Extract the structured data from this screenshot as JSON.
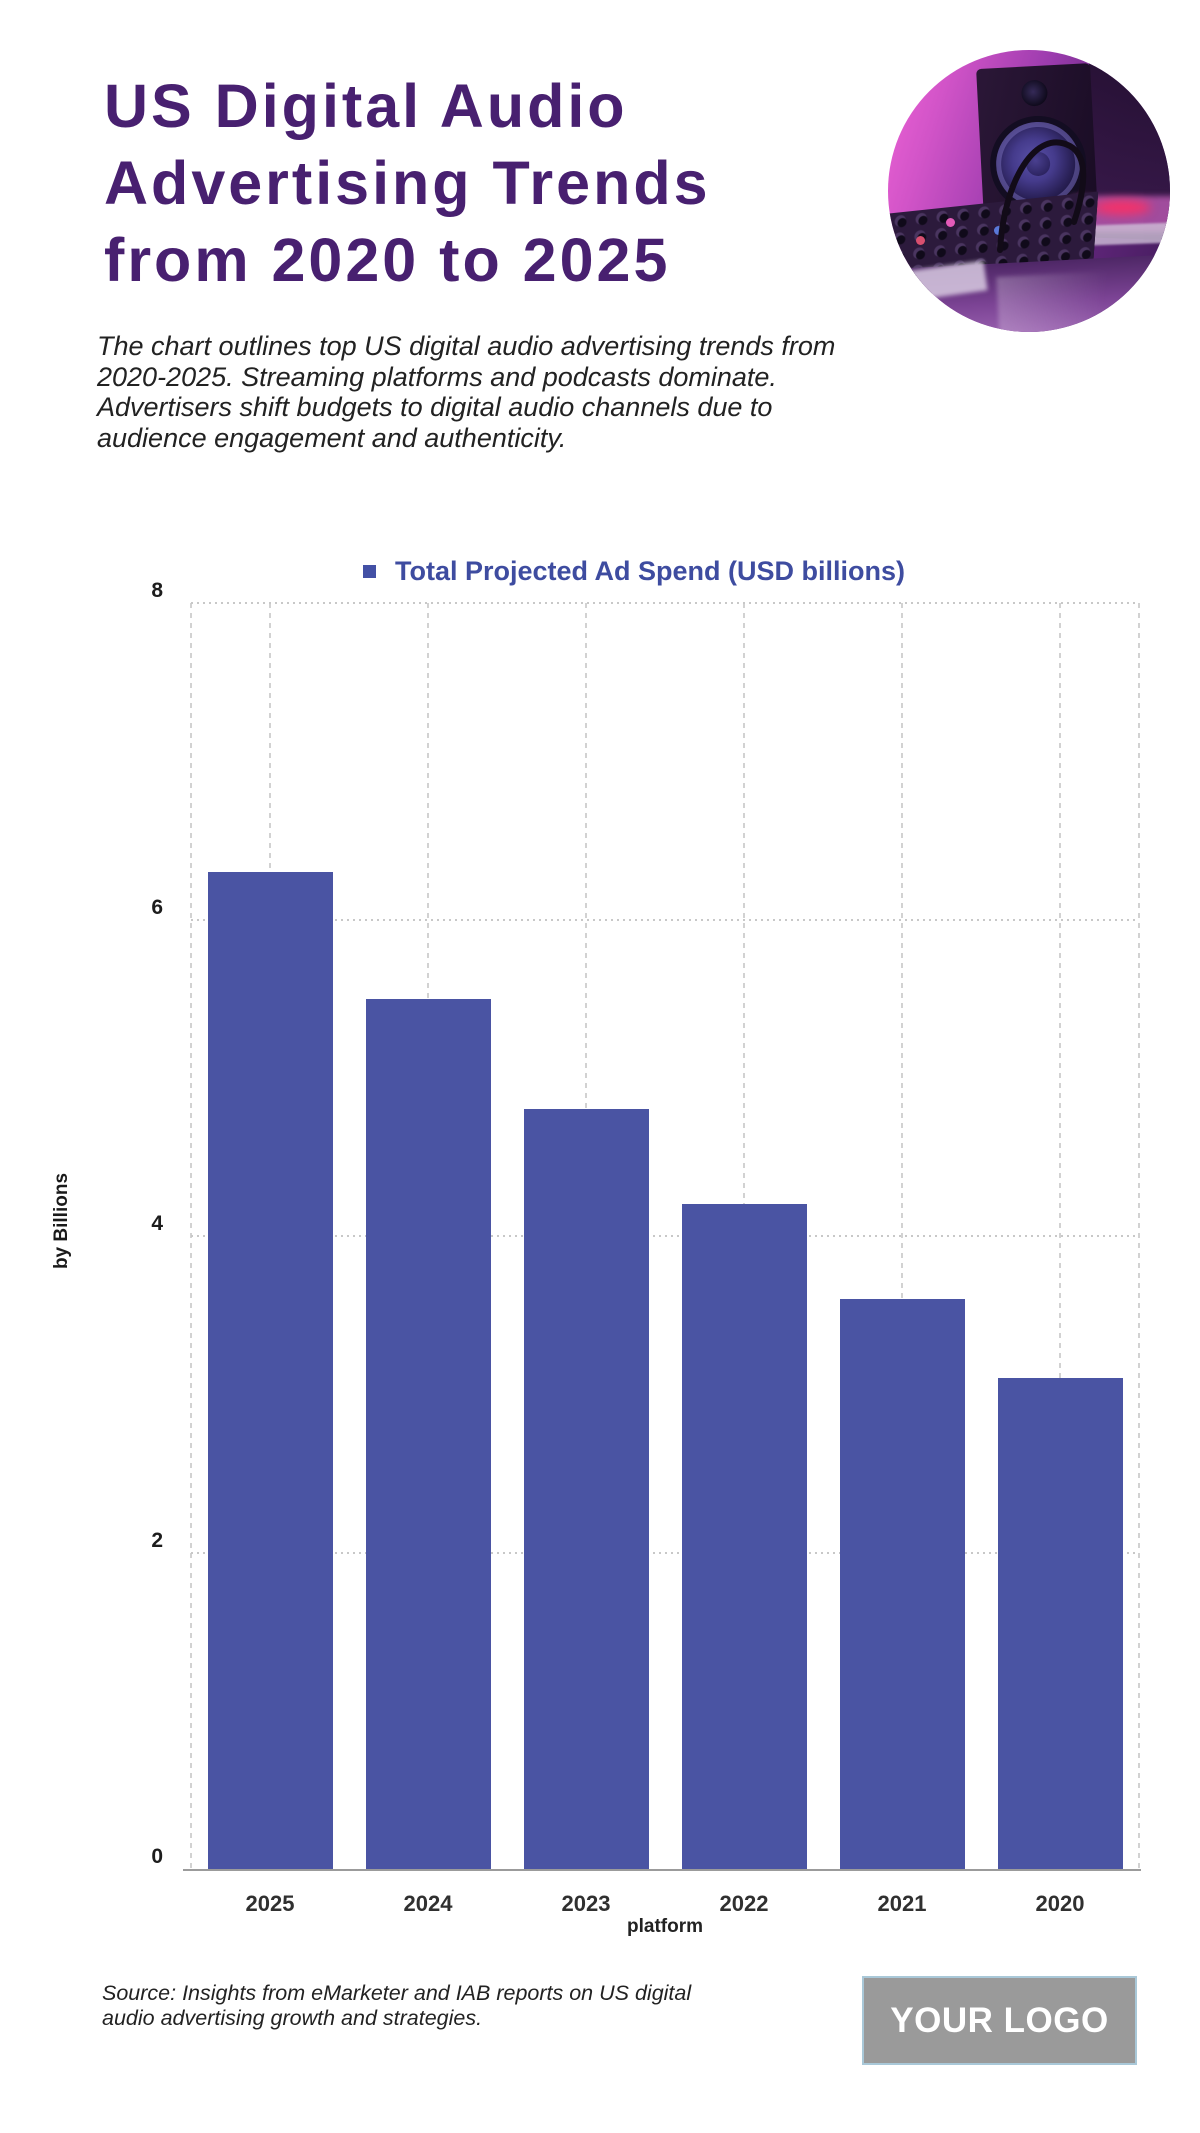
{
  "header": {
    "title_lines": [
      "US Digital Audio",
      "Advertising Trends",
      "from 2020 to 2025"
    ],
    "subtitle_lines": [
      "The chart outlines top US digital audio advertising trends from",
      "2020-2025. Streaming platforms and podcasts dominate.",
      "Advertisers shift budgets to digital audio channels due to",
      "audience engagement and authenticity."
    ]
  },
  "chart_data": {
    "type": "bar",
    "title": "Total Projected Ad Spend (USD billions)",
    "categories": [
      "2025",
      "2024",
      "2023",
      "2022",
      "2021",
      "2020"
    ],
    "values": [
      6.3,
      5.5,
      4.8,
      4.2,
      3.6,
      3.1
    ],
    "xlabel": "platform",
    "ylabel": "by Billions",
    "ylim": [
      0,
      8
    ],
    "yticks": [
      0,
      2,
      4,
      6,
      8
    ],
    "bar_color": "#4a54a3",
    "legend_position": "top",
    "grid": true
  },
  "footer": {
    "source_lines": [
      "Source: Insights from eMarketer and IAB reports on US digital",
      "audio advertising growth and strategies."
    ],
    "logo_text": "YOUR LOGO"
  }
}
